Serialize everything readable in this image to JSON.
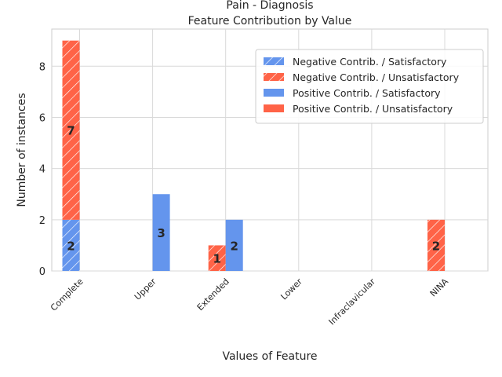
{
  "chart_data": {
    "type": "bar",
    "title_line1": "Pain - Diagnosis",
    "title_line2": "Feature Contribution by Value",
    "xlabel": "Values of Feature",
    "ylabel": "Number of instances",
    "categories": [
      "Complete",
      "Upper",
      "Extended",
      "Lower",
      "Infraclavicular",
      "NINA"
    ],
    "ylim": [
      0,
      9.45
    ],
    "yticks": [
      0,
      2,
      4,
      6,
      8
    ],
    "grid": true,
    "legend_position": "top-right",
    "colors": {
      "satisfactory": "#6495ED",
      "unsatisfactory": "#FF6347"
    },
    "series": [
      {
        "name": "Negative Contrib. / Satisfactory",
        "group": "negative",
        "outcome": "satisfactory",
        "hatch": true,
        "values": [
          2,
          0,
          0,
          0,
          0,
          0
        ]
      },
      {
        "name": "Negative Contrib. / Unsatisfactory",
        "group": "negative",
        "outcome": "unsatisfactory",
        "hatch": true,
        "values": [
          7,
          0,
          1,
          0,
          0,
          2
        ]
      },
      {
        "name": "Positive Contrib. / Satisfactory",
        "group": "positive",
        "outcome": "satisfactory",
        "hatch": false,
        "values": [
          0,
          3,
          2,
          0,
          0,
          0
        ]
      },
      {
        "name": "Positive Contrib. / Unsatisfactory",
        "group": "positive",
        "outcome": "unsatisfactory",
        "hatch": false,
        "values": [
          0,
          0,
          0,
          0,
          0,
          0
        ]
      }
    ]
  }
}
